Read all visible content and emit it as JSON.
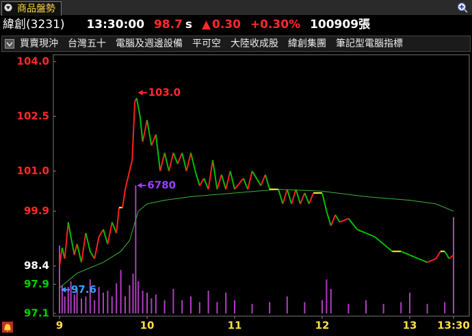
{
  "header": {
    "tab": "商品盤勢",
    "name": "緯創(3231)",
    "time": "13:30:00",
    "price": "98.7",
    "flag": "s",
    "change_arrow": "▲",
    "change": "0.30",
    "change_pct": "+0.30%",
    "volume": "100909張"
  },
  "toolbar": [
    "買賣現沖",
    "台灣五十",
    "電腦及週邊設備",
    "平可空",
    "大陸收成股",
    "緯創集團",
    "筆記型電腦指標"
  ],
  "chart_data": {
    "type": "line",
    "xlim": [
      9,
      13.5
    ],
    "xticks": [
      9,
      10,
      11,
      12,
      13,
      {
        "value": 13.5,
        "label": "13:30"
      }
    ],
    "ylim": [
      97.1,
      104.0
    ],
    "yticks": [
      {
        "value": 104,
        "label": "104.0"
      },
      102.5,
      {
        "value": 101,
        "label": "101.0"
      },
      99.9,
      98.4,
      97.9,
      97.1
    ],
    "ytick_colors": [
      "#ff2a2a",
      "#ff2a2a",
      "#ff2a2a",
      "#ff2a2a",
      "#ffffff",
      "#00d000",
      "#00d000"
    ],
    "grid": false,
    "series": [
      {
        "name": "price",
        "up_color": "#ff2020",
        "down_color": "#00c000",
        "flat_color": "#ffff30",
        "x": [
          9.0,
          9.03,
          9.06,
          9.1,
          9.13,
          9.17,
          9.2,
          9.25,
          9.3,
          9.35,
          9.4,
          9.45,
          9.5,
          9.55,
          9.6,
          9.65,
          9.68,
          9.72,
          9.75,
          9.8,
          9.83,
          9.86,
          9.88,
          9.92,
          9.95,
          10.0,
          10.05,
          10.1,
          10.15,
          10.2,
          10.25,
          10.3,
          10.35,
          10.4,
          10.45,
          10.5,
          10.55,
          10.6,
          10.65,
          10.7,
          10.75,
          10.8,
          10.85,
          10.9,
          10.95,
          11.0,
          11.1,
          11.15,
          11.2,
          11.3,
          11.35,
          11.4,
          11.5,
          11.55,
          11.6,
          11.65,
          11.7,
          11.75,
          11.8,
          11.85,
          11.9,
          12.0,
          12.05,
          12.1,
          12.15,
          12.2,
          12.3,
          12.4,
          12.5,
          12.6,
          12.7,
          12.8,
          12.9,
          13.0,
          13.1,
          13.2,
          13.3,
          13.35,
          13.4,
          13.45,
          13.5
        ],
        "values": [
          98.4,
          98.9,
          98.6,
          99.6,
          99.2,
          98.7,
          99.0,
          98.5,
          99.3,
          98.8,
          98.6,
          99.2,
          99.4,
          99.0,
          99.6,
          99.3,
          100.0,
          100.0,
          100.5,
          101.0,
          101.3,
          102.9,
          103.0,
          102.5,
          101.8,
          102.4,
          101.7,
          102.0,
          101.0,
          101.5,
          101.0,
          101.5,
          101.2,
          101.5,
          101.0,
          101.5,
          101.0,
          100.6,
          100.8,
          100.5,
          101.3,
          100.5,
          100.9,
          100.5,
          101.0,
          100.5,
          100.8,
          100.5,
          101.0,
          100.6,
          100.9,
          100.5,
          100.5,
          100.1,
          100.5,
          100.1,
          100.5,
          100.1,
          100.4,
          100.1,
          100.4,
          100.4,
          99.9,
          99.5,
          99.8,
          99.6,
          99.7,
          99.4,
          99.3,
          99.2,
          99.0,
          98.8,
          98.8,
          98.7,
          98.6,
          98.5,
          98.6,
          98.8,
          98.8,
          98.6,
          98.7
        ]
      },
      {
        "name": "average",
        "color": "#3cb43c",
        "x": [
          9.0,
          9.2,
          9.5,
          9.7,
          9.8,
          9.9,
          10.0,
          10.2,
          10.5,
          11.0,
          11.5,
          12.0,
          12.5,
          13.0,
          13.3,
          13.5
        ],
        "values": [
          97.8,
          98.2,
          98.5,
          98.8,
          99.1,
          99.9,
          100.1,
          100.2,
          100.3,
          100.4,
          100.5,
          100.45,
          100.3,
          100.2,
          100.1,
          99.9
        ]
      },
      {
        "name": "volume",
        "color": "#b040c0",
        "x": [
          9.0,
          9.03,
          9.06,
          9.1,
          9.13,
          9.17,
          9.2,
          9.25,
          9.3,
          9.35,
          9.4,
          9.45,
          9.5,
          9.55,
          9.6,
          9.65,
          9.7,
          9.75,
          9.8,
          9.84,
          9.87,
          9.9,
          9.95,
          10.0,
          10.05,
          10.1,
          10.2,
          10.3,
          10.4,
          10.5,
          10.6,
          10.7,
          10.8,
          10.9,
          11.0,
          11.2,
          11.4,
          11.6,
          11.8,
          12.0,
          12.05,
          12.1,
          12.3,
          12.5,
          12.7,
          12.9,
          13.0,
          13.2,
          13.4,
          13.5
        ],
        "values": [
          3600,
          1500,
          900,
          1400,
          1700,
          1000,
          1200,
          800,
          900,
          1800,
          700,
          1400,
          1100,
          1200,
          900,
          1600,
          2300,
          900,
          1500,
          2100,
          6780,
          1700,
          1200,
          1100,
          800,
          1000,
          700,
          1300,
          700,
          900,
          600,
          1200,
          600,
          1100,
          700,
          500,
          600,
          900,
          600,
          700,
          1800,
          1300,
          500,
          700,
          500,
          600,
          1100,
          500,
          600,
          5100
        ]
      }
    ],
    "annotations": [
      {
        "label": "103.0",
        "x": 9.88,
        "value": 103.0,
        "color": "#ff2a2a"
      },
      {
        "label": "6780",
        "x": 9.87,
        "value": 6780,
        "series": 2,
        "color": "#9a40ff"
      },
      {
        "label": "97.6",
        "x": 9.0,
        "value": 97.6,
        "color": "#3aa0ff"
      }
    ]
  }
}
